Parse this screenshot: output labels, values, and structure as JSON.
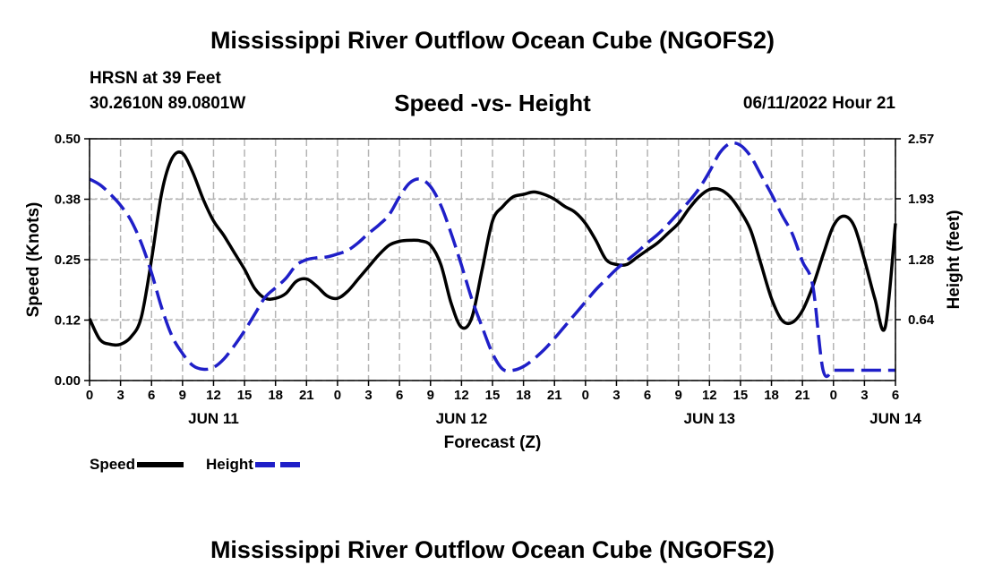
{
  "header": {
    "title": "Mississippi River Outflow Ocean Cube (NGOFS2)",
    "station": "HRSN at 39 Feet",
    "coords": "30.2610N  89.0801W",
    "subtitle": "Speed -vs- Height",
    "timestamp": "06/11/2022 Hour 21"
  },
  "footer": {
    "title": "Mississippi River Outflow Ocean Cube (NGOFS2)"
  },
  "legend": {
    "speed_label": "Speed",
    "height_label": "Height"
  },
  "colors": {
    "speed": "#000000",
    "height": "#1f1fc8",
    "grid": "#b4b4b4"
  },
  "chart_data": {
    "type": "line",
    "title": "Speed -vs- Height",
    "xlabel": "Forecast (Z)",
    "ylabel": "Speed (Knots)",
    "y2label": "Height (feet)",
    "xlim": [
      0,
      78
    ],
    "ylim": [
      0,
      0.5
    ],
    "y2lim": [
      -0.01,
      2.57
    ],
    "x_ticks": [
      0,
      3,
      6,
      9,
      12,
      15,
      18,
      21,
      24,
      27,
      30,
      33,
      36,
      39,
      42,
      45,
      48,
      51,
      54,
      57,
      60,
      63,
      66,
      69,
      72,
      75,
      78
    ],
    "x_tick_labels": [
      "0",
      "3",
      "6",
      "9",
      "12",
      "15",
      "18",
      "21",
      "0",
      "3",
      "6",
      "9",
      "12",
      "15",
      "18",
      "21",
      "0",
      "3",
      "6",
      "9",
      "12",
      "15",
      "18",
      "21",
      "0",
      "3",
      "6"
    ],
    "y_ticks": [
      "0.00",
      "0.12",
      "0.25",
      "0.38",
      "0.50"
    ],
    "y_tick_values": [
      0,
      0.125,
      0.25,
      0.375,
      0.5
    ],
    "y2_ticks": [
      "0.64",
      "1.28",
      "1.93",
      "2.57"
    ],
    "y2_tick_values": [
      0.64,
      1.28,
      1.93,
      2.57
    ],
    "date_labels": [
      {
        "x": 12,
        "label": "JUN 11"
      },
      {
        "x": 36,
        "label": "JUN 12"
      },
      {
        "x": 60,
        "label": "JUN 13"
      },
      {
        "x": 78,
        "label": "JUN 14"
      }
    ],
    "grid": true,
    "series": [
      {
        "name": "Speed",
        "axis": "left",
        "style": "solid",
        "x": [
          0,
          1,
          2,
          3,
          4,
          5,
          6,
          7,
          8,
          9,
          10,
          11,
          12,
          13,
          14,
          15,
          16,
          17,
          18,
          19,
          20,
          21,
          22,
          23,
          24,
          25,
          26,
          27,
          28,
          29,
          30,
          31,
          32,
          33,
          34,
          35,
          36,
          37,
          38,
          39,
          40,
          41,
          42,
          43,
          44,
          45,
          46,
          47,
          48,
          49,
          50,
          51,
          52,
          53,
          54,
          55,
          56,
          57,
          58,
          59,
          60,
          61,
          62,
          63,
          64,
          65,
          66,
          67,
          68,
          69,
          70,
          71,
          72,
          73,
          74,
          75,
          76,
          77,
          78
        ],
        "values": [
          0.128,
          0.085,
          0.075,
          0.075,
          0.09,
          0.13,
          0.25,
          0.39,
          0.46,
          0.47,
          0.43,
          0.375,
          0.33,
          0.3,
          0.265,
          0.23,
          0.19,
          0.17,
          0.17,
          0.18,
          0.205,
          0.21,
          0.195,
          0.175,
          0.17,
          0.185,
          0.21,
          0.235,
          0.26,
          0.28,
          0.288,
          0.29,
          0.289,
          0.28,
          0.24,
          0.16,
          0.11,
          0.13,
          0.23,
          0.33,
          0.36,
          0.38,
          0.385,
          0.39,
          0.385,
          0.375,
          0.36,
          0.348,
          0.325,
          0.29,
          0.25,
          0.24,
          0.24,
          0.255,
          0.27,
          0.285,
          0.305,
          0.325,
          0.355,
          0.38,
          0.395,
          0.395,
          0.38,
          0.35,
          0.31,
          0.24,
          0.17,
          0.125,
          0.12,
          0.145,
          0.195,
          0.26,
          0.32,
          0.34,
          0.32,
          0.25,
          0.17,
          0.11,
          0.325
        ]
      },
      {
        "name": "Height",
        "axis": "right",
        "style": "dashed",
        "x": [
          0,
          1,
          2,
          3,
          4,
          5,
          6,
          7,
          8,
          9,
          10,
          11,
          12,
          13,
          14,
          15,
          16,
          17,
          18,
          19,
          20,
          21,
          22,
          23,
          24,
          25,
          26,
          27,
          28,
          29,
          30,
          31,
          32,
          33,
          34,
          35,
          36,
          37,
          38,
          39,
          40,
          41,
          42,
          43,
          44,
          45,
          46,
          47,
          48,
          49,
          50,
          51,
          52,
          53,
          54,
          55,
          56,
          57,
          58,
          59,
          60,
          61,
          62,
          63,
          64,
          65,
          66,
          67,
          68,
          69,
          70,
          71,
          72,
          73,
          74,
          75,
          76,
          77,
          78
        ],
        "values": [
          2.14,
          2.08,
          1.98,
          1.86,
          1.7,
          1.46,
          1.14,
          0.76,
          0.46,
          0.28,
          0.15,
          0.11,
          0.13,
          0.22,
          0.36,
          0.52,
          0.7,
          0.88,
          0.98,
          1.08,
          1.22,
          1.28,
          1.3,
          1.31,
          1.34,
          1.38,
          1.46,
          1.56,
          1.65,
          1.76,
          1.95,
          2.1,
          2.14,
          2.06,
          1.86,
          1.56,
          1.22,
          0.86,
          0.56,
          0.28,
          0.11,
          0.1,
          0.14,
          0.22,
          0.32,
          0.44,
          0.57,
          0.7,
          0.83,
          0.96,
          1.07,
          1.18,
          1.27,
          1.36,
          1.46,
          1.55,
          1.66,
          1.78,
          1.9,
          2.04,
          2.22,
          2.42,
          2.52,
          2.5,
          2.38,
          2.18,
          1.98,
          1.76,
          1.56,
          1.26,
          1.0,
          0.1,
          0.1,
          0.1,
          0.1,
          0.1,
          0.1,
          0.1,
          0.1
        ]
      }
    ]
  }
}
